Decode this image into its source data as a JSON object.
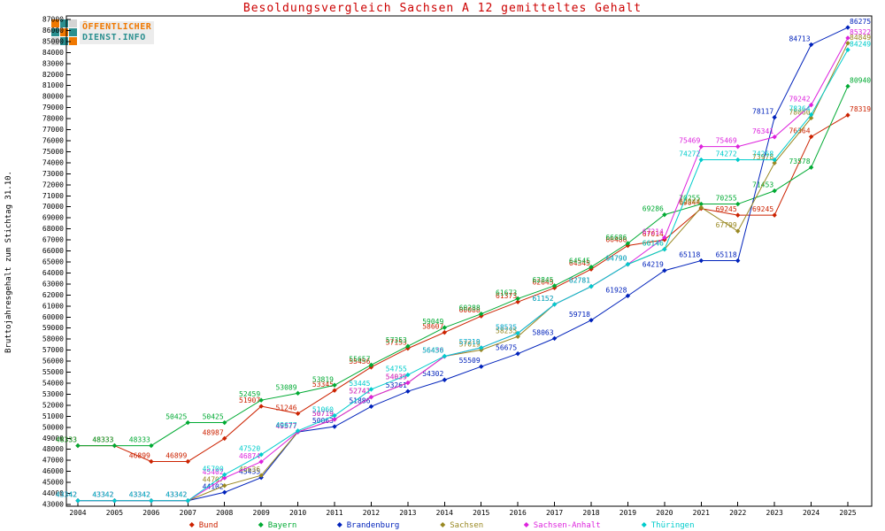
{
  "logo": {
    "line1": "ÖFFENTLICHER",
    "line2": "DIENST.INFO"
  },
  "chart_data": {
    "type": "line",
    "title": "Besoldungsvergleich Sachsen A 12 gemitteltes Gehalt",
    "title_color": "#cc0000",
    "xlabel": "",
    "ylabel": "Bruttojahresgehalt zum Stichtag 31.10.",
    "ylim": [
      43000,
      87000
    ],
    "ytick_step": 1000,
    "grid": false,
    "legend_position": "bottom",
    "categories": [
      2004,
      2005,
      2006,
      2007,
      2008,
      2009,
      2010,
      2011,
      2012,
      2013,
      2014,
      2015,
      2016,
      2017,
      2018,
      2019,
      2020,
      2021,
      2022,
      2023,
      2024,
      2025
    ],
    "series": [
      {
        "name": "Bund",
        "color": "#cc2200",
        "values": [
          48333,
          48333,
          46899,
          46899,
          48987,
          51907,
          51246,
          53345,
          55456,
          57153,
          58607,
          60088,
          61373,
          62645,
          64345,
          66486,
          67014,
          69844,
          69245,
          69245,
          76364,
          78319
        ]
      },
      {
        "name": "Bayern",
        "color": "#00aa33",
        "values": [
          48333,
          48333,
          48333,
          50425,
          50425,
          52459,
          53089,
          53819,
          55657,
          57353,
          59049,
          60288,
          61673,
          62845,
          64545,
          66686,
          69286,
          70255,
          70255,
          71453,
          73578,
          80940
        ]
      },
      {
        "name": "Brandenburg",
        "color": "#0022bb",
        "values": [
          43342,
          43342,
          43342,
          43342,
          44102,
          45435,
          49577,
          50063,
          51886,
          53261,
          54302,
          55509,
          56675,
          58063,
          59718,
          61928,
          64219,
          65118,
          65118,
          78117,
          84713,
          86275
        ]
      },
      {
        "name": "Sachsen",
        "color": "#998822",
        "values": [
          43342,
          43342,
          43342,
          43342,
          44707,
          45636,
          49577,
          50719,
          52741,
          54039,
          56436,
          57019,
          58235,
          61152,
          62781,
          64790,
          66146,
          69944,
          67799,
          73978,
          78060,
          84849
        ]
      },
      {
        "name": "Sachsen-Anhalt",
        "color": "#dd22dd",
        "values": [
          43342,
          43342,
          43342,
          43342,
          45402,
          46874,
          49577,
          50719,
          52741,
          54039,
          56436,
          57219,
          58535,
          61152,
          62781,
          64790,
          67214,
          75469,
          75469,
          76341,
          79242,
          85322
        ]
      },
      {
        "name": "Thüringen",
        "color": "#00cccc",
        "values": [
          43342,
          43342,
          43342,
          43342,
          45700,
          47520,
          49677,
          51060,
          53445,
          54755,
          56450,
          57219,
          58535,
          61152,
          62781,
          64790,
          66146,
          74272,
          74272,
          74268,
          78364,
          84249
        ]
      }
    ]
  }
}
